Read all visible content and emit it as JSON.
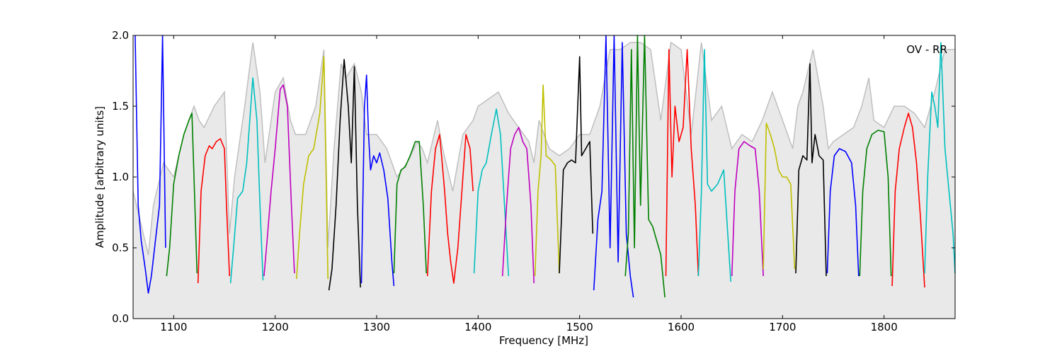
{
  "chart_data": {
    "type": "line",
    "title": "",
    "xlabel": "Frequency [MHz]",
    "ylabel": "Amplitude [arbitrary units]",
    "xlim": [
      1060,
      1870
    ],
    "ylim": [
      0.0,
      2.0
    ],
    "xticks": [
      1100,
      1200,
      1300,
      1400,
      1500,
      1600,
      1700,
      1800
    ],
    "xtick_labels": [
      "1100",
      "1200",
      "1300",
      "1400",
      "1500",
      "1600",
      "1700",
      "1800"
    ],
    "yticks": [
      0.0,
      0.5,
      1.0,
      1.5,
      2.0
    ],
    "ytick_labels": [
      "0.0",
      "0.5",
      "1.0",
      "1.5",
      "2.0"
    ],
    "annotation": "OV - RR",
    "grid": false,
    "envelope": {
      "color": "#bfbfbf",
      "x": [
        1060,
        1070,
        1075,
        1080,
        1090,
        1100,
        1110,
        1120,
        1125,
        1130,
        1140,
        1150,
        1155,
        1160,
        1170,
        1178,
        1185,
        1190,
        1200,
        1208,
        1215,
        1220,
        1230,
        1240,
        1248,
        1252,
        1258,
        1265,
        1270,
        1278,
        1285,
        1290,
        1300,
        1310,
        1315,
        1320,
        1330,
        1340,
        1345,
        1350,
        1360,
        1365,
        1375,
        1385,
        1395,
        1400,
        1410,
        1420,
        1430,
        1440,
        1450,
        1455,
        1460,
        1470,
        1480,
        1490,
        1500,
        1510,
        1520,
        1530,
        1540,
        1550,
        1560,
        1570,
        1580,
        1590,
        1600,
        1610,
        1620,
        1630,
        1640,
        1650,
        1660,
        1670,
        1680,
        1690,
        1700,
        1710,
        1715,
        1720,
        1730,
        1740,
        1745,
        1750,
        1760,
        1770,
        1778,
        1785,
        1790,
        1800,
        1810,
        1820,
        1830,
        1840,
        1850,
        1860,
        1870
      ],
      "y": [
        0.9,
        0.6,
        0.45,
        0.8,
        1.1,
        1.0,
        1.3,
        1.5,
        1.4,
        1.35,
        1.5,
        1.6,
        0.6,
        1.0,
        1.5,
        1.95,
        1.6,
        1.1,
        1.6,
        1.7,
        1.4,
        1.3,
        1.3,
        1.5,
        1.9,
        0.5,
        1.2,
        1.8,
        1.7,
        1.8,
        1.6,
        1.3,
        1.3,
        1.2,
        1.1,
        1.0,
        1.1,
        1.25,
        1.2,
        1.1,
        1.4,
        1.2,
        0.9,
        1.3,
        1.4,
        1.5,
        1.55,
        1.6,
        1.45,
        1.35,
        1.25,
        1.1,
        1.4,
        1.2,
        1.15,
        1.2,
        1.3,
        1.3,
        1.5,
        1.9,
        1.9,
        1.95,
        1.95,
        1.9,
        1.4,
        1.95,
        1.9,
        1.3,
        1.95,
        1.4,
        1.5,
        1.2,
        1.3,
        1.25,
        1.4,
        1.6,
        1.4,
        1.2,
        1.5,
        1.6,
        1.9,
        1.5,
        1.2,
        1.25,
        1.3,
        1.35,
        1.5,
        1.7,
        1.4,
        1.35,
        1.5,
        1.5,
        1.45,
        1.35,
        1.6,
        1.9,
        1.9
      ]
    },
    "series": [
      {
        "color": "#0000ff",
        "x": [
          1062,
          1065,
          1068,
          1072,
          1075,
          1078,
          1082,
          1086,
          1089,
          1092
        ],
        "y": [
          2.0,
          0.8,
          0.55,
          0.35,
          0.18,
          0.3,
          0.55,
          0.8,
          2.0,
          0.5
        ]
      },
      {
        "color": "#008000",
        "x": [
          1093,
          1096,
          1100,
          1105,
          1110,
          1115,
          1118,
          1120,
          1123
        ],
        "y": [
          0.3,
          0.5,
          0.95,
          1.15,
          1.3,
          1.4,
          1.45,
          1.0,
          0.32
        ]
      },
      {
        "color": "#ff0000",
        "x": [
          1124,
          1127,
          1131,
          1135,
          1138,
          1142,
          1146,
          1150,
          1152,
          1155
        ],
        "y": [
          0.25,
          0.9,
          1.15,
          1.22,
          1.2,
          1.25,
          1.27,
          1.2,
          0.8,
          0.3
        ]
      },
      {
        "color": "#00bfbf",
        "x": [
          1156,
          1159,
          1163,
          1168,
          1172,
          1178,
          1182,
          1185,
          1188
        ],
        "y": [
          0.25,
          0.5,
          0.85,
          0.9,
          1.1,
          1.7,
          1.4,
          0.8,
          0.27
        ]
      },
      {
        "color": "#bf00bf",
        "x": [
          1189,
          1192,
          1196,
          1200,
          1205,
          1208,
          1212,
          1216,
          1219
        ],
        "y": [
          0.3,
          0.55,
          0.9,
          1.2,
          1.62,
          1.65,
          1.5,
          0.8,
          0.32
        ]
      },
      {
        "color": "#bfbf00",
        "x": [
          1221,
          1224,
          1228,
          1233,
          1238,
          1244,
          1248,
          1250,
          1252
        ],
        "y": [
          0.28,
          0.6,
          0.95,
          1.15,
          1.2,
          1.45,
          1.85,
          1.1,
          0.28
        ]
      },
      {
        "color": "#000000",
        "x": [
          1253,
          1256,
          1260,
          1264,
          1268,
          1272,
          1275,
          1278,
          1281,
          1284
        ],
        "y": [
          0.2,
          0.35,
          0.8,
          1.4,
          1.83,
          1.5,
          1.1,
          1.78,
          0.8,
          0.22
        ]
      },
      {
        "color": "#0000ff",
        "x": [
          1285,
          1288,
          1290,
          1292,
          1294,
          1297,
          1300,
          1303,
          1307,
          1311,
          1315,
          1317
        ],
        "y": [
          0.25,
          1.5,
          1.72,
          1.3,
          1.05,
          1.15,
          1.1,
          1.17,
          1.05,
          0.85,
          0.4,
          0.23
        ]
      },
      {
        "color": "#008000",
        "x": [
          1317,
          1320,
          1324,
          1328,
          1333,
          1338,
          1342,
          1346,
          1349
        ],
        "y": [
          0.32,
          0.95,
          1.05,
          1.07,
          1.15,
          1.25,
          1.25,
          0.8,
          0.32
        ]
      },
      {
        "color": "#ff0000",
        "x": [
          1350,
          1354,
          1358,
          1362,
          1364,
          1367,
          1370,
          1373,
          1376,
          1380,
          1384,
          1388,
          1392,
          1395
        ],
        "y": [
          0.3,
          0.9,
          1.2,
          1.3,
          1.15,
          0.9,
          0.6,
          0.4,
          0.25,
          0.5,
          0.9,
          1.3,
          1.2,
          0.9
        ]
      },
      {
        "color": "#00bfbf",
        "x": [
          1396,
          1400,
          1404,
          1408,
          1413,
          1418,
          1422,
          1426,
          1430
        ],
        "y": [
          0.32,
          0.9,
          1.05,
          1.1,
          1.3,
          1.48,
          1.3,
          0.8,
          0.3
        ]
      },
      {
        "color": "#bf00bf",
        "x": [
          1424,
          1428,
          1432,
          1436,
          1440,
          1444,
          1448,
          1452,
          1455
        ],
        "y": [
          0.3,
          0.8,
          1.2,
          1.3,
          1.35,
          1.25,
          1.2,
          0.8,
          0.25
        ]
      },
      {
        "color": "#bfbf00",
        "x": [
          1456,
          1459,
          1462,
          1464,
          1467,
          1472,
          1476,
          1480
        ],
        "y": [
          0.3,
          0.9,
          1.15,
          1.65,
          1.15,
          1.12,
          1.08,
          0.32
        ]
      },
      {
        "color": "#000000",
        "x": [
          1480,
          1484,
          1488,
          1492,
          1496,
          1500,
          1502,
          1506,
          1510,
          1513
        ],
        "y": [
          0.32,
          1.05,
          1.1,
          1.12,
          1.1,
          1.85,
          1.15,
          1.2,
          1.25,
          0.6
        ]
      },
      {
        "color": "#0000ff",
        "x": [
          1514,
          1518,
          1522,
          1526,
          1530,
          1534,
          1538,
          1542,
          1546,
          1550,
          1553
        ],
        "y": [
          0.2,
          0.7,
          0.9,
          2.0,
          0.5,
          2.0,
          0.4,
          1.95,
          0.6,
          0.3,
          0.15
        ]
      },
      {
        "color": "#008000",
        "x": [
          1545,
          1548,
          1551,
          1554,
          1557,
          1560,
          1564,
          1568,
          1572,
          1576,
          1580,
          1584
        ],
        "y": [
          0.3,
          0.6,
          1.9,
          0.5,
          2.0,
          0.8,
          2.0,
          0.7,
          0.65,
          0.55,
          0.45,
          0.15
        ]
      },
      {
        "color": "#ff0000",
        "x": [
          1585,
          1588,
          1591,
          1594,
          1598,
          1602,
          1606,
          1610,
          1614,
          1617
        ],
        "y": [
          0.3,
          1.9,
          1.0,
          1.5,
          1.25,
          1.35,
          1.9,
          1.2,
          0.8,
          0.3
        ]
      },
      {
        "color": "#00bfbf",
        "x": [
          1617,
          1620,
          1623,
          1626,
          1630,
          1636,
          1642,
          1646,
          1649
        ],
        "y": [
          0.3,
          0.9,
          1.9,
          0.95,
          0.9,
          0.95,
          1.05,
          0.6,
          0.26
        ]
      },
      {
        "color": "#bf00bf",
        "x": [
          1650,
          1653,
          1657,
          1662,
          1668,
          1673,
          1677,
          1681
        ],
        "y": [
          0.3,
          0.9,
          1.2,
          1.25,
          1.22,
          1.2,
          0.9,
          0.3
        ]
      },
      {
        "color": "#bfbf00",
        "x": [
          1681,
          1684,
          1688,
          1692,
          1696,
          1700,
          1704,
          1708,
          1712
        ],
        "y": [
          0.35,
          1.38,
          1.3,
          1.2,
          1.05,
          1.0,
          1.0,
          0.95,
          0.35
        ]
      },
      {
        "color": "#000000",
        "x": [
          1713,
          1716,
          1720,
          1724,
          1727,
          1729,
          1732,
          1736,
          1740,
          1743
        ],
        "y": [
          0.32,
          1.05,
          1.15,
          1.12,
          1.8,
          1.1,
          1.3,
          1.15,
          1.12,
          0.3
        ]
      },
      {
        "color": "#0000ff",
        "x": [
          1744,
          1747,
          1751,
          1756,
          1762,
          1768,
          1772,
          1775
        ],
        "y": [
          0.32,
          0.9,
          1.15,
          1.2,
          1.18,
          1.1,
          0.8,
          0.3
        ]
      },
      {
        "color": "#008000",
        "x": [
          1776,
          1779,
          1783,
          1788,
          1794,
          1800,
          1804,
          1807
        ],
        "y": [
          0.3,
          0.9,
          1.2,
          1.3,
          1.33,
          1.32,
          1.0,
          0.3
        ]
      },
      {
        "color": "#ff0000",
        "x": [
          1808,
          1811,
          1815,
          1820,
          1824,
          1828,
          1832,
          1836,
          1840
        ],
        "y": [
          0.23,
          0.9,
          1.2,
          1.35,
          1.45,
          1.35,
          1.1,
          0.7,
          0.22
        ]
      },
      {
        "color": "#00bfbf",
        "x": [
          1840,
          1843,
          1847,
          1850,
          1853,
          1856,
          1860,
          1864,
          1868,
          1870
        ],
        "y": [
          0.32,
          1.0,
          1.6,
          1.5,
          1.35,
          1.95,
          1.2,
          0.9,
          0.6,
          0.32
        ]
      }
    ]
  }
}
